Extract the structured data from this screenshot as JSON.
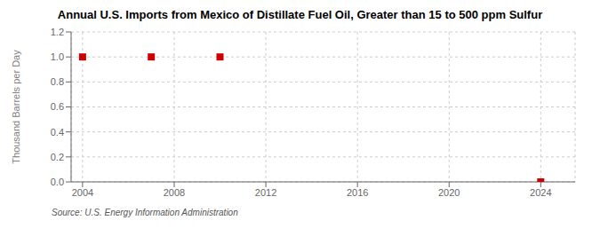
{
  "chart_data": {
    "type": "scatter",
    "title": "Annual U.S. Imports from Mexico of Distillate Fuel Oil, Greater than 15 to 500 ppm Sulfur",
    "ylabel": "Thousand Barrels per Day",
    "annotation": "Source: U.S. Energy Information Administration",
    "x": [
      2004,
      2007,
      2010,
      2024
    ],
    "values": [
      1.0,
      1.0,
      1.0,
      0.0
    ],
    "color": "#cc0000",
    "marker": "square",
    "xlim": [
      2003.5,
      2025.5
    ],
    "ylim": [
      0.0,
      1.2
    ],
    "xticks": [
      2004,
      2008,
      2012,
      2016,
      2020,
      2024
    ],
    "yticks": [
      {
        "value": 0,
        "label": "0.0"
      },
      0.2,
      0.4,
      0.6,
      0.8,
      {
        "value": 1,
        "label": "1.0"
      },
      1.2
    ],
    "grid": true
  }
}
